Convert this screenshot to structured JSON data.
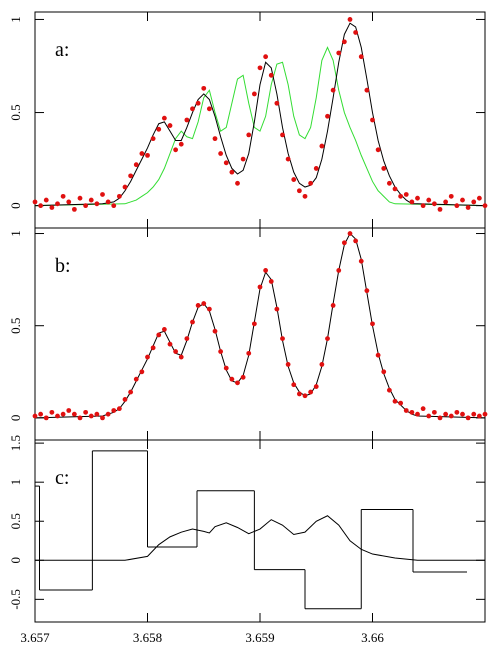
{
  "chart_data": [
    {
      "type": "scatter",
      "label": "a:",
      "xlim": [
        3.657,
        3.661
      ],
      "ylim": [
        -0.12,
        1.04
      ],
      "yticks": [
        0,
        0.5,
        1
      ],
      "series": [
        {
          "kind": "line",
          "color": "#33dd33",
          "x": [
            3.657,
            3.6578,
            3.65785,
            3.6579,
            3.65795,
            3.658,
            3.65805,
            3.6581,
            3.65815,
            3.6582,
            3.65825,
            3.6583,
            3.65835,
            3.6584,
            3.65845,
            3.6585,
            3.65855,
            3.6586,
            3.65865,
            3.6587,
            3.65875,
            3.6588,
            3.65885,
            3.6589,
            3.65895,
            3.659,
            3.65905,
            3.6591,
            3.65915,
            3.6592,
            3.65925,
            3.6593,
            3.65935,
            3.6594,
            3.65945,
            3.6595,
            3.65955,
            3.6596,
            3.65965,
            3.6597,
            3.65975,
            3.6598,
            3.65985,
            3.6599,
            3.65995,
            3.66,
            3.66005,
            3.6601,
            3.66015,
            3.6602,
            3.661
          ],
          "values": [
            0,
            0.01,
            0.02,
            0.03,
            0.05,
            0.07,
            0.1,
            0.14,
            0.2,
            0.28,
            0.36,
            0.4,
            0.37,
            0.36,
            0.45,
            0.58,
            0.62,
            0.5,
            0.4,
            0.42,
            0.55,
            0.68,
            0.7,
            0.55,
            0.42,
            0.4,
            0.48,
            0.65,
            0.76,
            0.77,
            0.65,
            0.48,
            0.38,
            0.36,
            0.42,
            0.58,
            0.78,
            0.85,
            0.78,
            0.62,
            0.5,
            0.42,
            0.35,
            0.27,
            0.2,
            0.13,
            0.08,
            0.05,
            0.02,
            0.01,
            0
          ]
        },
        {
          "kind": "line",
          "color": "#000000",
          "x": [
            3.657,
            3.6576,
            3.6577,
            3.65775,
            3.6578,
            3.65785,
            3.6579,
            3.65795,
            3.658,
            3.65805,
            3.6581,
            3.65815,
            3.6582,
            3.65825,
            3.6583,
            3.65835,
            3.6584,
            3.65845,
            3.6585,
            3.65855,
            3.6586,
            3.65865,
            3.6587,
            3.65875,
            3.6588,
            3.65885,
            3.6589,
            3.65895,
            3.659,
            3.65905,
            3.6591,
            3.65915,
            3.6592,
            3.65925,
            3.6593,
            3.65935,
            3.6594,
            3.65945,
            3.6595,
            3.65955,
            3.6596,
            3.65965,
            3.6597,
            3.65975,
            3.6598,
            3.65985,
            3.6599,
            3.65995,
            3.66,
            3.66005,
            3.6601,
            3.66015,
            3.6602,
            3.66025,
            3.6603,
            3.66035,
            3.6604,
            3.661
          ],
          "values": [
            0,
            0.01,
            0.02,
            0.04,
            0.08,
            0.13,
            0.19,
            0.25,
            0.31,
            0.38,
            0.44,
            0.45,
            0.4,
            0.35,
            0.35,
            0.42,
            0.5,
            0.57,
            0.6,
            0.57,
            0.48,
            0.37,
            0.27,
            0.2,
            0.17,
            0.19,
            0.28,
            0.45,
            0.65,
            0.77,
            0.74,
            0.6,
            0.42,
            0.28,
            0.18,
            0.12,
            0.1,
            0.11,
            0.15,
            0.25,
            0.4,
            0.58,
            0.77,
            0.92,
            0.98,
            0.96,
            0.85,
            0.68,
            0.5,
            0.35,
            0.24,
            0.16,
            0.1,
            0.06,
            0.03,
            0.01,
            0.01,
            0
          ]
        },
        {
          "kind": "points",
          "color": "#e01010",
          "x": [
            3.657,
            3.65705,
            3.6571,
            3.65715,
            3.6572,
            3.65725,
            3.6573,
            3.65735,
            3.6574,
            3.65745,
            3.6575,
            3.65755,
            3.6576,
            3.65765,
            3.6577,
            3.65775,
            3.6578,
            3.65785,
            3.6579,
            3.65795,
            3.658,
            3.65805,
            3.6581,
            3.65815,
            3.6582,
            3.65825,
            3.6583,
            3.65835,
            3.6584,
            3.65845,
            3.6585,
            3.65855,
            3.6586,
            3.65865,
            3.6587,
            3.65875,
            3.6588,
            3.65885,
            3.6589,
            3.65895,
            3.659,
            3.65905,
            3.6591,
            3.65915,
            3.6592,
            3.65925,
            3.6593,
            3.65935,
            3.6594,
            3.65945,
            3.6595,
            3.65955,
            3.6596,
            3.65965,
            3.6597,
            3.65975,
            3.6598,
            3.65985,
            3.6599,
            3.65995,
            3.66,
            3.66005,
            3.6601,
            3.66015,
            3.6602,
            3.66025,
            3.6603,
            3.66035,
            3.6604,
            3.66045,
            3.6605,
            3.66055,
            3.6606,
            3.66065,
            3.6607,
            3.66075,
            3.6608,
            3.66085,
            3.6609,
            3.66095,
            3.661
          ],
          "values": [
            0.02,
            0,
            0.03,
            -0.01,
            0.01,
            0.05,
            0.02,
            -0.02,
            0.04,
            0,
            0.03,
            0.01,
            0.06,
            0.02,
            0,
            0.05,
            0.1,
            0.16,
            0.22,
            0.28,
            0.27,
            0.36,
            0.41,
            0.47,
            0.43,
            0.3,
            0.33,
            0.46,
            0.52,
            0.55,
            0.63,
            0.52,
            0.36,
            0.28,
            0.23,
            0.18,
            0.12,
            0.25,
            0.38,
            0.6,
            0.74,
            0.8,
            0.7,
            0.55,
            0.38,
            0.25,
            0.14,
            0.08,
            0.05,
            0.12,
            0.2,
            0.32,
            0.48,
            0.62,
            0.82,
            0.88,
            1,
            0.93,
            0.8,
            0.62,
            0.46,
            0.3,
            0.2,
            0.12,
            0.09,
            0.05,
            0.06,
            0.02,
            0.04,
            0,
            0.03,
            0.01,
            -0.02,
            0.02,
            0.05,
            0,
            0.03,
            -0.01,
            0.02,
            0.04,
            0
          ]
        }
      ]
    },
    {
      "type": "scatter",
      "label": "b:",
      "xlim": [
        3.657,
        3.661
      ],
      "ylim": [
        -0.12,
        1.03
      ],
      "yticks": [
        0,
        0.5,
        1
      ],
      "series": [
        {
          "kind": "line",
          "color": "#000000",
          "x": [
            3.657,
            3.6576,
            3.6577,
            3.65775,
            3.6578,
            3.65785,
            3.6579,
            3.65795,
            3.658,
            3.65805,
            3.6581,
            3.65815,
            3.6582,
            3.65825,
            3.6583,
            3.65835,
            3.6584,
            3.65845,
            3.6585,
            3.65855,
            3.6586,
            3.65865,
            3.6587,
            3.65875,
            3.6588,
            3.65885,
            3.6589,
            3.65895,
            3.659,
            3.65905,
            3.6591,
            3.65915,
            3.6592,
            3.65925,
            3.6593,
            3.65935,
            3.6594,
            3.65945,
            3.6595,
            3.65955,
            3.6596,
            3.65965,
            3.6597,
            3.65975,
            3.6598,
            3.65985,
            3.6599,
            3.65995,
            3.66,
            3.66005,
            3.6601,
            3.66015,
            3.6602,
            3.66025,
            3.6603,
            3.66035,
            3.6604,
            3.661
          ],
          "values": [
            0,
            0.01,
            0.03,
            0.05,
            0.09,
            0.14,
            0.2,
            0.26,
            0.32,
            0.39,
            0.46,
            0.47,
            0.41,
            0.35,
            0.34,
            0.42,
            0.52,
            0.6,
            0.62,
            0.58,
            0.48,
            0.36,
            0.26,
            0.2,
            0.19,
            0.23,
            0.34,
            0.52,
            0.7,
            0.79,
            0.75,
            0.6,
            0.42,
            0.28,
            0.19,
            0.14,
            0.12,
            0.13,
            0.18,
            0.28,
            0.43,
            0.62,
            0.8,
            0.94,
            1,
            0.97,
            0.86,
            0.68,
            0.5,
            0.35,
            0.24,
            0.16,
            0.1,
            0.07,
            0.04,
            0.02,
            0.01,
            0
          ]
        },
        {
          "kind": "points",
          "color": "#e01010",
          "x": [
            3.657,
            3.65705,
            3.6571,
            3.65715,
            3.6572,
            3.65725,
            3.6573,
            3.65735,
            3.6574,
            3.65745,
            3.6575,
            3.65755,
            3.6576,
            3.65765,
            3.6577,
            3.65775,
            3.6578,
            3.65785,
            3.6579,
            3.65795,
            3.658,
            3.65805,
            3.6581,
            3.65815,
            3.6582,
            3.65825,
            3.6583,
            3.65835,
            3.6584,
            3.65845,
            3.6585,
            3.65855,
            3.6586,
            3.65865,
            3.6587,
            3.65875,
            3.6588,
            3.65885,
            3.6589,
            3.65895,
            3.659,
            3.65905,
            3.6591,
            3.65915,
            3.6592,
            3.65925,
            3.6593,
            3.65935,
            3.6594,
            3.65945,
            3.6595,
            3.65955,
            3.6596,
            3.65965,
            3.6597,
            3.65975,
            3.6598,
            3.65985,
            3.6599,
            3.65995,
            3.66,
            3.66005,
            3.6601,
            3.66015,
            3.6602,
            3.66025,
            3.6603,
            3.66035,
            3.6604,
            3.66045,
            3.6605,
            3.66055,
            3.6606,
            3.66065,
            3.6607,
            3.66075,
            3.6608,
            3.66085,
            3.6609,
            3.66095,
            3.661
          ],
          "values": [
            0.01,
            0.02,
            0,
            0.03,
            0.01,
            0.02,
            0.04,
            0.02,
            0,
            0.03,
            0.01,
            0.02,
            0,
            0.02,
            0.04,
            0.05,
            0.1,
            0.14,
            0.21,
            0.25,
            0.33,
            0.38,
            0.45,
            0.48,
            0.4,
            0.36,
            0.33,
            0.43,
            0.52,
            0.61,
            0.62,
            0.59,
            0.47,
            0.36,
            0.27,
            0.21,
            0.19,
            0.22,
            0.35,
            0.51,
            0.71,
            0.8,
            0.74,
            0.59,
            0.43,
            0.29,
            0.18,
            0.13,
            0.12,
            0.14,
            0.17,
            0.29,
            0.43,
            0.61,
            0.8,
            0.95,
            1,
            0.96,
            0.85,
            0.69,
            0.51,
            0.34,
            0.25,
            0.15,
            0.09,
            0.08,
            0.04,
            0.03,
            0.02,
            0.05,
            0.01,
            0.03,
            0,
            0.02,
            0.01,
            0.03,
            0.02,
            0,
            0.02,
            0.01,
            0.02
          ]
        }
      ]
    },
    {
      "type": "line",
      "label": "c:",
      "xlim": [
        3.657,
        3.661
      ],
      "ylim": [
        -0.79,
        1.54
      ],
      "yticks": [
        -0.5,
        0,
        0.5,
        1,
        1.5
      ],
      "xticks": [
        3.657,
        3.658,
        3.659,
        3.66
      ],
      "series": [
        {
          "kind": "step",
          "color": "#000000",
          "bins": [
            3.657,
            3.65704,
            3.65751,
            3.658,
            3.65844,
            3.65895,
            3.6594,
            3.6599,
            3.66036,
            3.66084
          ],
          "values": [
            0.95,
            -0.38,
            1.4,
            0.17,
            0.89,
            -0.12,
            -0.62,
            0.65,
            -0.15
          ]
        },
        {
          "kind": "line",
          "color": "#000000",
          "x": [
            3.657,
            3.6578,
            3.658,
            3.6581,
            3.6582,
            3.6583,
            3.6584,
            3.6585,
            3.65855,
            3.6586,
            3.6587,
            3.6588,
            3.6589,
            3.659,
            3.6591,
            3.6592,
            3.6593,
            3.6594,
            3.6595,
            3.6596,
            3.6597,
            3.6598,
            3.6599,
            3.66,
            3.6602,
            3.6604,
            3.661
          ],
          "values": [
            0,
            0,
            0.05,
            0.2,
            0.3,
            0.36,
            0.4,
            0.37,
            0.35,
            0.43,
            0.48,
            0.42,
            0.34,
            0.4,
            0.52,
            0.45,
            0.33,
            0.36,
            0.5,
            0.57,
            0.45,
            0.25,
            0.14,
            0.08,
            0.03,
            0,
            0
          ]
        }
      ]
    }
  ]
}
